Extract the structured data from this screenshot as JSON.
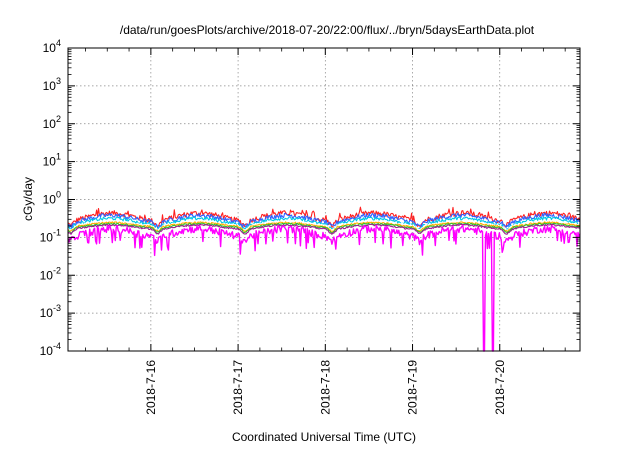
{
  "chart_data": {
    "type": "line",
    "title": "/data/run/goesPlots/archive/2018-07-20/22:00/flux/../bryn/5daysEarthData.plot",
    "xlabel": "Coordinated Universal Time (UTC)",
    "ylabel": "cGy/day",
    "yscale": "log",
    "ylim": [
      0.0001,
      10000
    ],
    "y_ticks": [
      {
        "value": 0.0001,
        "base": "10",
        "exp": "-4"
      },
      {
        "value": 0.001,
        "base": "10",
        "exp": "-3"
      },
      {
        "value": 0.01,
        "base": "10",
        "exp": "-2"
      },
      {
        "value": 0.1,
        "base": "10",
        "exp": "-1"
      },
      {
        "value": 1,
        "base": "10",
        "exp": "0"
      },
      {
        "value": 10,
        "base": "10",
        "exp": "1"
      },
      {
        "value": 100,
        "base": "10",
        "exp": "2"
      },
      {
        "value": 1000,
        "base": "10",
        "exp": "3"
      },
      {
        "value": 10000,
        "base": "10",
        "exp": "4"
      }
    ],
    "x_ticks": [
      "2018-7-16",
      "2018-7-17",
      "2018-7-18",
      "2018-7-19",
      "2018-7-20"
    ],
    "xlim": [
      15.05,
      20.92
    ],
    "grid": true,
    "legend": "none",
    "dropouts": [
      19.82,
      19.92
    ],
    "series": [
      {
        "color": "#ff2020",
        "base": 0.36,
        "amp": 0.22,
        "noise": 0.16
      },
      {
        "color": "#3060ff",
        "base": 0.32,
        "amp": 0.2,
        "noise": 0.14
      },
      {
        "color": "#00c8e6",
        "base": 0.27,
        "amp": 0.18,
        "noise": 0.1
      },
      {
        "color": "#ffffff",
        "base": 0.235,
        "amp": 0.12,
        "noise": 0.05
      },
      {
        "color": "#ffb000",
        "base": 0.22,
        "amp": 0.12,
        "noise": 0.05
      },
      {
        "color": "#30c030",
        "base": 0.205,
        "amp": 0.12,
        "noise": 0.05
      },
      {
        "color": "#9a2090",
        "base": 0.19,
        "amp": 0.12,
        "noise": 0.05
      },
      {
        "color": "#ff00ff",
        "base": 0.14,
        "amp": 0.22,
        "noise": 0.22
      }
    ]
  }
}
